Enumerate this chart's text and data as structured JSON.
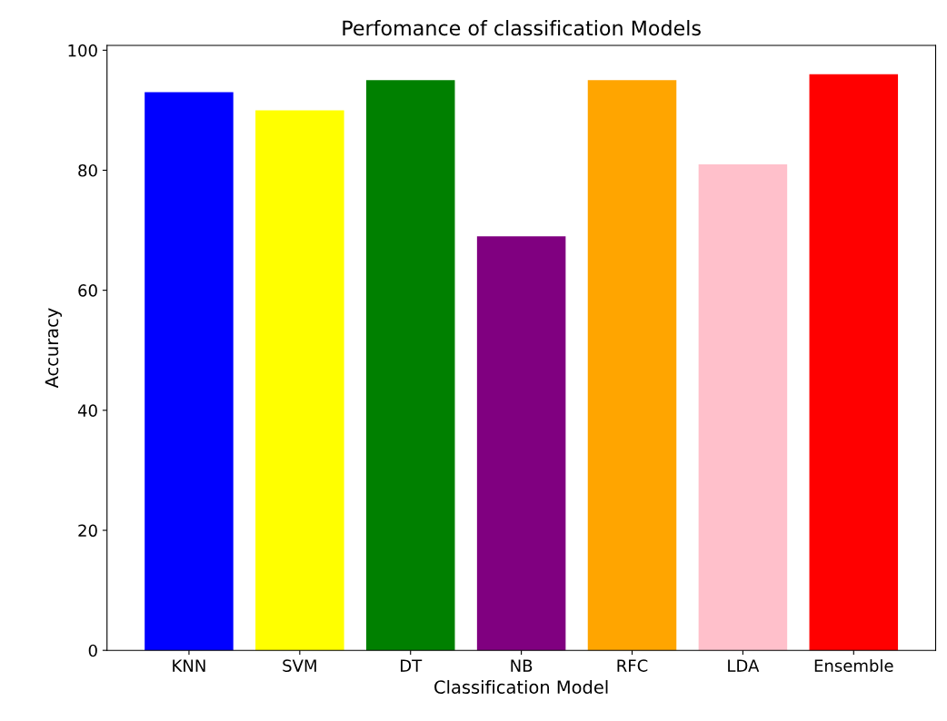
{
  "chart_data": {
    "type": "bar",
    "title": "Perfomance of classification Models",
    "xlabel": "Classification Model",
    "ylabel": "Accuracy",
    "categories": [
      "KNN",
      "SVM",
      "DT",
      "NB",
      "RFC",
      "LDA",
      "Ensemble"
    ],
    "values": [
      93,
      90,
      95,
      69,
      95,
      81,
      96
    ],
    "colors": [
      "#0000ff",
      "#ffff00",
      "#008000",
      "#800080",
      "#ffa500",
      "#ffc0cb",
      "#ff0000"
    ],
    "ylim": [
      0,
      100.8
    ],
    "yticks": [
      0,
      20,
      40,
      60,
      80,
      100
    ],
    "grid": false
  }
}
